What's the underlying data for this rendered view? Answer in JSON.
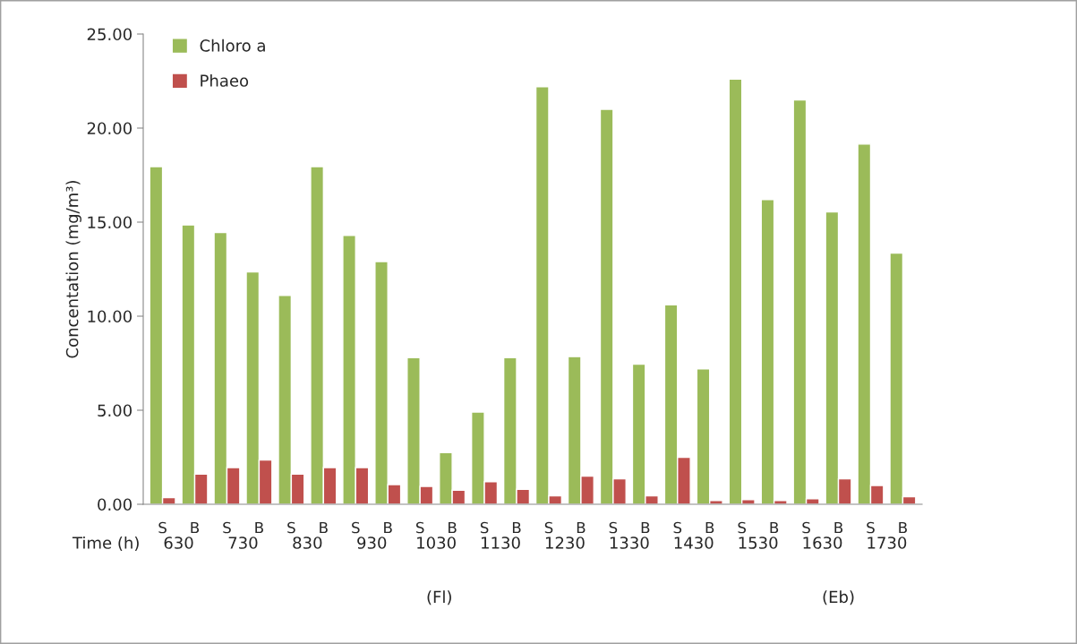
{
  "chart_data": {
    "type": "bar",
    "ylabel": "Concentation (mg/m³)",
    "categories": [
      "S",
      "B",
      "S",
      "B",
      "S",
      "B",
      "S",
      "B",
      "S",
      "B",
      "S",
      "B",
      "S",
      "B",
      "S",
      "B",
      "S",
      "B",
      "S",
      "B",
      "S",
      "B",
      "S",
      "B"
    ],
    "series": [
      {
        "name": "Chloro a",
        "color": "#9bbb59",
        "values": [
          17.95,
          14.85,
          14.45,
          12.35,
          11.1,
          17.95,
          14.3,
          12.9,
          7.8,
          2.75,
          4.9,
          7.8,
          22.2,
          7.85,
          21.0,
          7.45,
          10.6,
          7.2,
          22.6,
          16.2,
          21.5,
          15.55,
          19.15,
          13.35
        ]
      },
      {
        "name": "Phaeo",
        "color": "#c0504d",
        "values": [
          0.35,
          1.6,
          1.95,
          2.35,
          1.6,
          1.95,
          1.95,
          1.05,
          0.95,
          0.75,
          1.2,
          0.8,
          0.45,
          1.5,
          1.35,
          0.45,
          2.5,
          0.2,
          0.25,
          0.2,
          0.3,
          1.35,
          1.0,
          0.4
        ]
      }
    ],
    "ylim": [
      0,
      25
    ],
    "yticks": [
      {
        "value": 0,
        "label": "0.00"
      },
      {
        "value": 5,
        "label": "5.00"
      },
      {
        "value": 10,
        "label": "10.00"
      },
      {
        "value": 15,
        "label": "15.00"
      },
      {
        "value": 20,
        "label": "20.00"
      },
      {
        "value": 25,
        "label": "25.00"
      }
    ],
    "legend": "top left",
    "grid": false,
    "annotations": [
      "Time (h)",
      "630",
      "730",
      "830",
      "930",
      "1030",
      "1130",
      "1230",
      "1330",
      "1430",
      "1530",
      "1630",
      "1730",
      "(Fl)",
      "(Eb)"
    ]
  }
}
